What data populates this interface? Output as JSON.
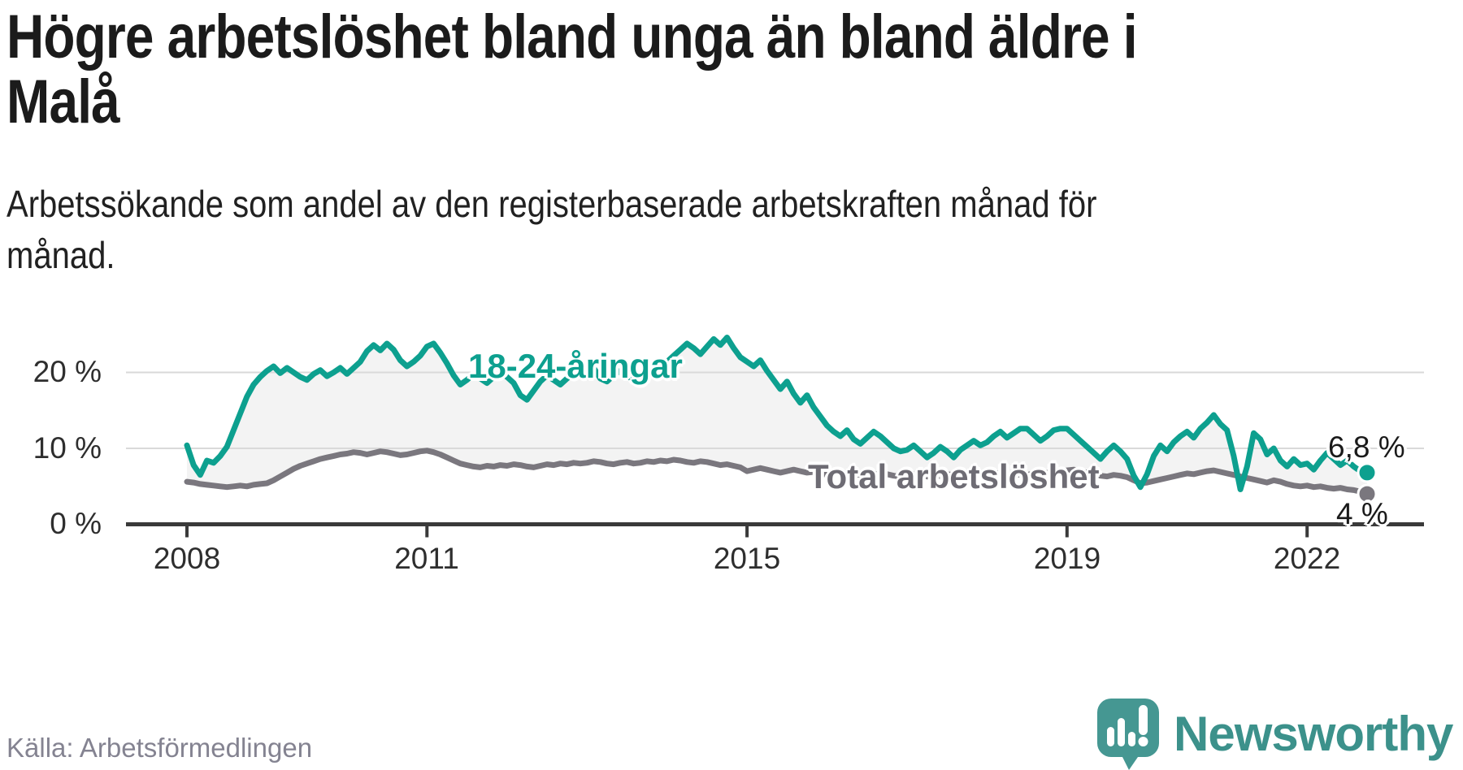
{
  "header": {
    "title_lines": [
      "Högre arbetslöshet bland unga än bland äldre i",
      "Malå"
    ],
    "subtitle_lines": [
      "Arbetssökande som andel av den registerbaserade arbetskraften månad för",
      "månad."
    ]
  },
  "chart": {
    "y_axis_labels": [
      "20 %",
      "10 %",
      "0 %"
    ],
    "x_axis_labels": [
      "2008",
      "2011",
      "2015",
      "2019",
      "2022"
    ],
    "series_labels": {
      "youth": "18-24-åringar",
      "total": "Total arbetslöshet"
    },
    "end_labels": {
      "youth": "6,8 %",
      "total": "4 %"
    }
  },
  "chart_data": {
    "type": "line",
    "title": "Högre arbetslöshet bland unga än bland äldre i Malå",
    "subtitle": "Arbetssökande som andel av den registerbaserade arbetskraften månad för månad.",
    "x_unit": "month",
    "x_range": [
      "2008-01",
      "2022-10"
    ],
    "x_tick_years": [
      2008,
      2011,
      2015,
      2019,
      2022
    ],
    "y_ticks": [
      0,
      10,
      20
    ],
    "ylim": [
      0,
      26
    ],
    "grid": true,
    "fill_between": "#f3f3f3",
    "series": [
      {
        "name": "18-24-åringar",
        "color": "#0da08f",
        "end_value": 6.8,
        "end_label": "6,8 %",
        "values": [
          10.4,
          7.8,
          6.5,
          8.4,
          8.1,
          9.0,
          10.2,
          12.4,
          14.6,
          16.8,
          18.4,
          19.4,
          20.2,
          20.8,
          19.9,
          20.6,
          20.0,
          19.4,
          19.0,
          19.8,
          20.3,
          19.5,
          20.0,
          20.6,
          19.8,
          20.6,
          21.4,
          22.8,
          23.6,
          22.9,
          23.8,
          23.0,
          21.6,
          20.8,
          21.4,
          22.2,
          23.4,
          23.8,
          22.6,
          21.2,
          19.6,
          18.4,
          19.0,
          19.8,
          19.2,
          18.6,
          19.4,
          20.0,
          19.4,
          18.6,
          17.0,
          16.4,
          17.6,
          18.8,
          19.6,
          19.0,
          18.4,
          19.2,
          19.8,
          20.4,
          19.8,
          20.6,
          19.2,
          18.8,
          19.6,
          20.2,
          19.6,
          19.0,
          19.8,
          20.4,
          19.8,
          20.8,
          21.4,
          22.2,
          23.0,
          23.8,
          23.2,
          22.4,
          23.4,
          24.4,
          23.6,
          24.6,
          23.2,
          22.0,
          21.4,
          20.8,
          21.6,
          20.2,
          19.0,
          17.8,
          18.8,
          17.2,
          16.0,
          17.0,
          15.4,
          14.2,
          13.0,
          12.2,
          11.6,
          12.4,
          11.2,
          10.6,
          11.4,
          12.2,
          11.6,
          10.8,
          10.0,
          9.6,
          9.8,
          10.4,
          9.6,
          8.8,
          9.4,
          10.2,
          9.6,
          8.8,
          9.8,
          10.4,
          11.0,
          10.4,
          10.8,
          11.6,
          12.2,
          11.4,
          12.0,
          12.6,
          12.6,
          11.8,
          11.0,
          11.6,
          12.4,
          12.6,
          12.6,
          11.8,
          11.0,
          10.2,
          9.4,
          8.6,
          9.6,
          10.4,
          9.6,
          8.6,
          6.4,
          4.9,
          6.6,
          9.0,
          10.4,
          9.6,
          10.8,
          11.6,
          12.2,
          11.4,
          12.6,
          13.4,
          14.4,
          13.2,
          12.4,
          9.0,
          4.6,
          7.6,
          12.0,
          11.2,
          9.2,
          10.0,
          8.4,
          7.6,
          8.6,
          7.8,
          8.0,
          7.2,
          8.4,
          9.4,
          8.6,
          7.8,
          8.4,
          7.6,
          7.0,
          6.8
        ]
      },
      {
        "name": "Total arbetslöshet",
        "color": "#7a777e",
        "end_value": 4.0,
        "end_label": "4 %",
        "values": [
          5.6,
          5.5,
          5.3,
          5.2,
          5.1,
          5.0,
          4.9,
          5.0,
          5.1,
          5.0,
          5.2,
          5.3,
          5.4,
          5.8,
          6.3,
          6.8,
          7.3,
          7.7,
          8.0,
          8.3,
          8.6,
          8.8,
          9.0,
          9.2,
          9.3,
          9.5,
          9.4,
          9.2,
          9.4,
          9.6,
          9.5,
          9.3,
          9.1,
          9.2,
          9.4,
          9.6,
          9.7,
          9.5,
          9.2,
          8.8,
          8.4,
          8.0,
          7.8,
          7.6,
          7.5,
          7.7,
          7.6,
          7.8,
          7.7,
          7.9,
          7.8,
          7.6,
          7.5,
          7.7,
          7.9,
          7.8,
          8.0,
          7.9,
          8.1,
          8.0,
          8.1,
          8.3,
          8.2,
          8.0,
          7.9,
          8.1,
          8.2,
          8.0,
          8.1,
          8.3,
          8.2,
          8.4,
          8.3,
          8.5,
          8.4,
          8.2,
          8.1,
          8.3,
          8.2,
          8.0,
          7.8,
          7.9,
          7.7,
          7.5,
          7.0,
          7.2,
          7.4,
          7.2,
          7.0,
          6.8,
          7.0,
          7.2,
          7.0,
          6.8,
          6.9,
          6.7,
          6.5,
          6.7,
          6.8,
          6.6,
          6.4,
          6.6,
          6.8,
          6.7,
          6.5,
          6.6,
          6.4,
          6.3,
          6.4,
          6.6,
          6.5,
          6.3,
          6.2,
          6.4,
          6.6,
          6.5,
          6.3,
          6.4,
          6.6,
          6.5,
          6.6,
          6.8,
          6.7,
          6.5,
          6.4,
          6.6,
          6.5,
          6.7,
          6.6,
          6.8,
          6.9,
          7.0,
          7.1,
          7.2,
          7.0,
          6.8,
          6.6,
          6.4,
          6.3,
          6.5,
          6.4,
          6.2,
          5.8,
          5.4,
          5.5,
          5.7,
          5.9,
          6.1,
          6.3,
          6.5,
          6.7,
          6.6,
          6.8,
          7.0,
          7.1,
          6.9,
          6.7,
          6.5,
          6.3,
          6.1,
          5.9,
          5.7,
          5.5,
          5.8,
          5.6,
          5.3,
          5.1,
          5.0,
          5.1,
          4.9,
          5.0,
          4.8,
          4.7,
          4.8,
          4.6,
          4.5,
          4.3,
          4.0
        ]
      }
    ],
    "legend_position": "inline-labels"
  },
  "footer": {
    "source": "Källa: Arbetsförmedlingen",
    "logo_text": "Newsworthy"
  },
  "colors": {
    "accent_teal": "#0da08f",
    "line_gray": "#7a777e",
    "grid": "#d9d9d9",
    "axis": "#3a3a3a",
    "fill_between": "#f3f3f3",
    "logo_teal": "#459792",
    "logo_text_teal": "#3c918b",
    "text_dark": "#1b1b1b",
    "text_muted": "#848391"
  }
}
